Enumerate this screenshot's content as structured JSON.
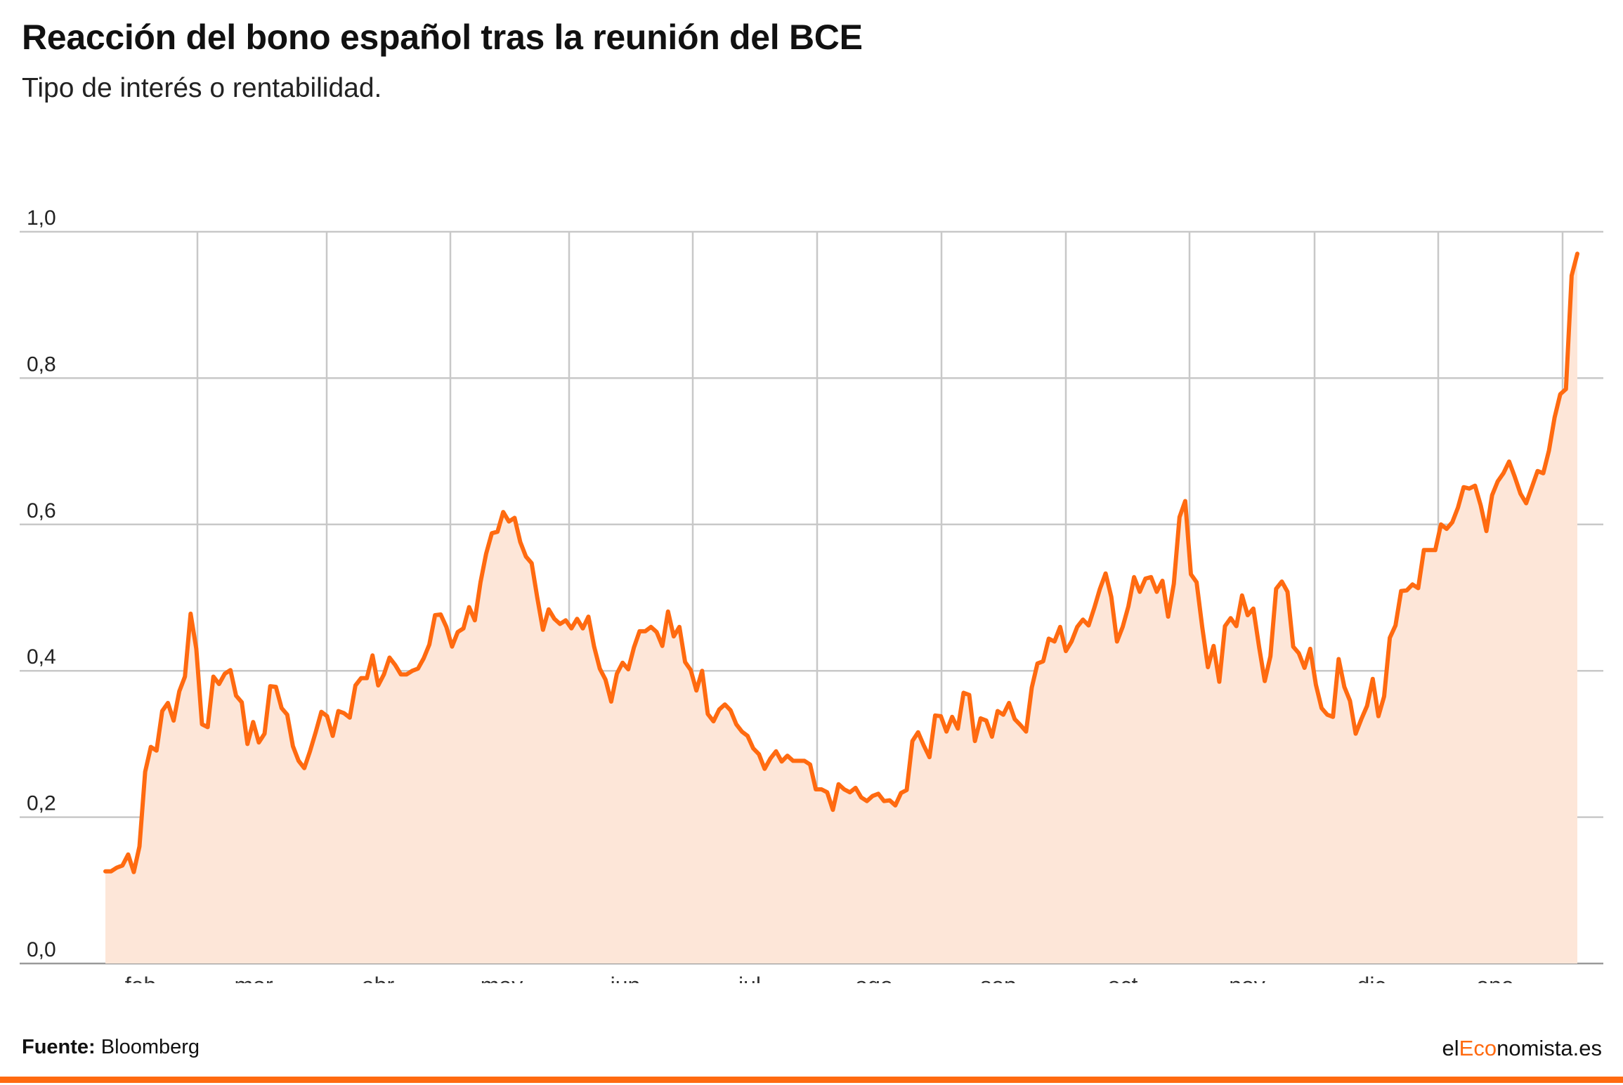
{
  "header": {
    "title": "Reacción del bono español tras la reunión del BCE",
    "subtitle": "Tipo de interés o rentabilidad."
  },
  "footer": {
    "source_label": "Fuente:",
    "source_value": "Bloomberg",
    "brand_prefix": "el",
    "brand_accent": "Eco",
    "brand_suffix": "nomista.es"
  },
  "colors": {
    "accent": "#ff6a10",
    "area": "#fde6d8",
    "grid": "#c8c8c8"
  },
  "chart_data": {
    "type": "area",
    "title": "Reacción del bono español tras la reunión del BCE",
    "subtitle": "Tipo de interés o rentabilidad.",
    "ylim": [
      0,
      1.0
    ],
    "yticks": [
      "0,0",
      "0,2",
      "0,4",
      "0,6",
      "0,8",
      "1,0"
    ],
    "xticks": [
      "feb",
      "mar",
      "abr",
      "may",
      "jun",
      "jul",
      "ago",
      "sep",
      "oct",
      "nov",
      "dic",
      "ene"
    ],
    "grid": true,
    "series": [
      {
        "values": [
          0.126,
          0.126,
          0.131,
          0.134,
          0.149,
          0.125,
          0.16,
          0.262,
          0.296,
          0.291,
          0.345,
          0.356,
          0.332,
          0.372,
          0.392,
          0.478,
          0.43,
          0.327,
          0.323,
          0.392,
          0.382,
          0.396,
          0.401,
          0.366,
          0.357,
          0.3,
          0.33,
          0.302,
          0.314,
          0.379,
          0.378,
          0.349,
          0.34,
          0.297,
          0.277,
          0.267,
          0.29,
          0.316,
          0.344,
          0.338,
          0.311,
          0.345,
          0.342,
          0.336,
          0.38,
          0.39,
          0.39,
          0.421,
          0.38,
          0.395,
          0.418,
          0.408,
          0.395,
          0.395,
          0.4,
          0.403,
          0.417,
          0.436,
          0.476,
          0.477,
          0.46,
          0.433,
          0.453,
          0.458,
          0.487,
          0.469,
          0.521,
          0.56,
          0.588,
          0.59,
          0.617,
          0.604,
          0.609,
          0.576,
          0.556,
          0.547,
          0.5,
          0.456,
          0.484,
          0.471,
          0.464,
          0.469,
          0.458,
          0.471,
          0.458,
          0.474,
          0.433,
          0.403,
          0.388,
          0.358,
          0.396,
          0.411,
          0.402,
          0.432,
          0.454,
          0.454,
          0.46,
          0.453,
          0.434,
          0.481,
          0.447,
          0.46,
          0.412,
          0.401,
          0.373,
          0.4,
          0.341,
          0.331,
          0.347,
          0.354,
          0.346,
          0.327,
          0.317,
          0.311,
          0.294,
          0.286,
          0.266,
          0.28,
          0.29,
          0.276,
          0.284,
          0.277,
          0.277,
          0.277,
          0.272,
          0.238,
          0.238,
          0.234,
          0.21,
          0.245,
          0.238,
          0.234,
          0.24,
          0.227,
          0.222,
          0.229,
          0.232,
          0.222,
          0.223,
          0.216,
          0.233,
          0.237,
          0.304,
          0.316,
          0.298,
          0.282,
          0.339,
          0.338,
          0.317,
          0.337,
          0.321,
          0.37,
          0.367,
          0.304,
          0.335,
          0.332,
          0.31,
          0.345,
          0.34,
          0.356,
          0.334,
          0.326,
          0.317,
          0.377,
          0.41,
          0.413,
          0.444,
          0.44,
          0.46,
          0.427,
          0.44,
          0.46,
          0.47,
          0.462,
          0.486,
          0.512,
          0.533,
          0.501,
          0.44,
          0.46,
          0.488,
          0.528,
          0.508,
          0.526,
          0.528,
          0.508,
          0.523,
          0.474,
          0.519,
          0.61,
          0.632,
          0.532,
          0.521,
          0.46,
          0.405,
          0.434,
          0.385,
          0.461,
          0.472,
          0.461,
          0.503,
          0.476,
          0.485,
          0.433,
          0.386,
          0.42,
          0.512,
          0.522,
          0.508,
          0.433,
          0.424,
          0.404,
          0.43,
          0.381,
          0.349,
          0.34,
          0.337,
          0.416,
          0.378,
          0.359,
          0.314,
          0.334,
          0.352,
          0.389,
          0.338,
          0.365,
          0.445,
          0.462,
          0.509,
          0.51,
          0.518,
          0.513,
          0.565,
          0.565,
          0.565,
          0.6,
          0.594,
          0.603,
          0.623,
          0.651,
          0.649,
          0.653,
          0.626,
          0.591,
          0.64,
          0.659,
          0.67,
          0.686,
          0.665,
          0.642,
          0.629,
          0.651,
          0.673,
          0.67,
          0.701,
          0.746,
          0.778,
          0.785,
          0.94,
          0.97
        ]
      }
    ]
  }
}
